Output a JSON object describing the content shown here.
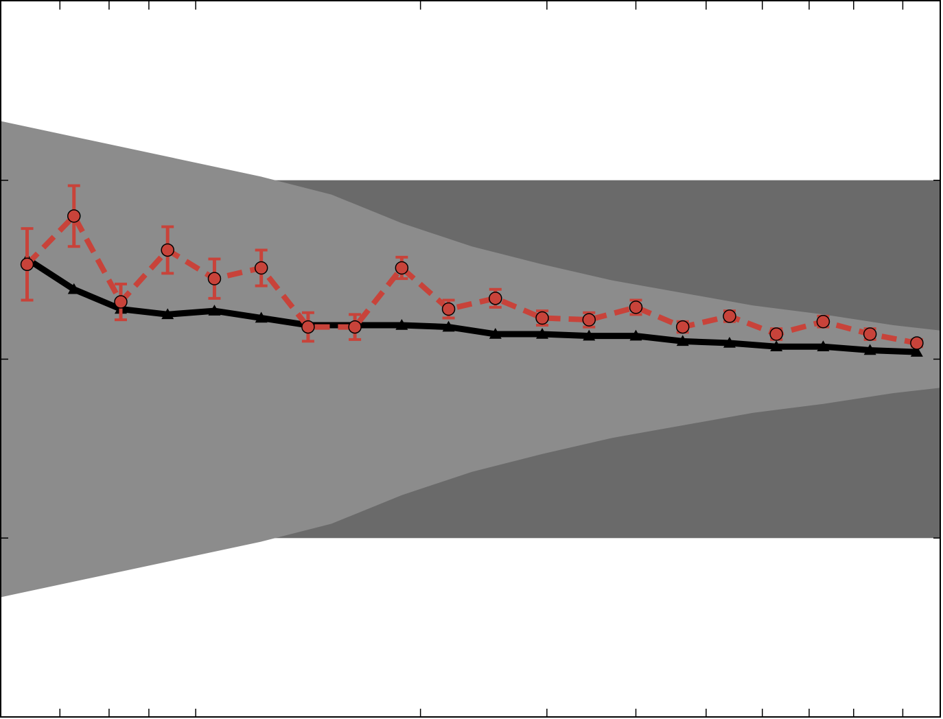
{
  "chart_data": {
    "type": "line",
    "title": "",
    "xlabel": "",
    "ylabel": "",
    "xlim": [
      0.45,
      20.5
    ],
    "ylim": [
      -2,
      2
    ],
    "x_ticks": [
      1.7,
      2.75,
      3.6,
      4.6,
      9.4,
      12.1,
      14.0,
      15.5,
      16.7,
      17.7,
      18.65,
      19.7
    ],
    "y_ticks": [
      -1,
      0,
      1
    ],
    "grid": false,
    "legend": "none",
    "bands": [
      {
        "name": "",
        "color": "#bfbfbf",
        "x": [
          0.45,
          6.0,
          7.5,
          20.5
        ],
        "upper": [
          1.33,
          1.0,
          1.0,
          1.0
        ],
        "lower": [
          -1.33,
          -1.0,
          -1.0,
          -1.0
        ]
      },
      {
        "name": "",
        "color": "#6a6a6a",
        "x": [
          0.45,
          20.5
        ],
        "upper": [
          1.0,
          1.0
        ],
        "lower": [
          -1.0,
          -1.0
        ]
      },
      {
        "name": "",
        "color": "#8c8c8c",
        "x": [
          0.45,
          6.0,
          7.5,
          9.0,
          10.5,
          12.0,
          13.5,
          15.0,
          16.5,
          18.0,
          19.5,
          20.5
        ],
        "upper": [
          1.33,
          1.02,
          0.92,
          0.76,
          0.63,
          0.53,
          0.44,
          0.37,
          0.3,
          0.25,
          0.19,
          0.16
        ],
        "lower": [
          -1.33,
          -1.02,
          -0.92,
          -0.76,
          -0.63,
          -0.53,
          -0.44,
          -0.37,
          -0.3,
          -0.25,
          -0.19,
          -0.16
        ]
      }
    ],
    "series": [
      {
        "name": "",
        "color": "#000000",
        "style": "solid",
        "marker": "triangle",
        "x": [
          1,
          2,
          3,
          4,
          5,
          6,
          7,
          8,
          9,
          10,
          11,
          12,
          13,
          14,
          15,
          16,
          17,
          18,
          19,
          20
        ],
        "y": [
          0.56,
          0.39,
          0.28,
          0.25,
          0.27,
          0.23,
          0.19,
          0.19,
          0.19,
          0.18,
          0.14,
          0.14,
          0.13,
          0.13,
          0.1,
          0.09,
          0.07,
          0.07,
          0.05,
          0.04
        ]
      },
      {
        "name": "",
        "color": "#c8433a",
        "style": "dashed",
        "marker": "circle",
        "x": [
          1,
          2,
          3,
          4,
          5,
          6,
          7,
          8,
          9,
          10,
          11,
          12,
          13,
          14,
          15,
          16,
          17,
          18,
          19,
          20
        ],
        "y": [
          0.53,
          0.8,
          0.32,
          0.61,
          0.45,
          0.51,
          0.18,
          0.18,
          0.51,
          0.28,
          0.34,
          0.23,
          0.22,
          0.29,
          0.18,
          0.24,
          0.14,
          0.21,
          0.14,
          0.09
        ],
        "error": [
          0.2,
          0.17,
          0.1,
          0.13,
          0.11,
          0.1,
          0.08,
          0.07,
          0.06,
          0.05,
          0.05,
          0.04,
          0.04,
          0.04,
          0.03,
          0.03,
          0.03,
          0.03,
          0.03,
          0.02
        ]
      }
    ]
  }
}
